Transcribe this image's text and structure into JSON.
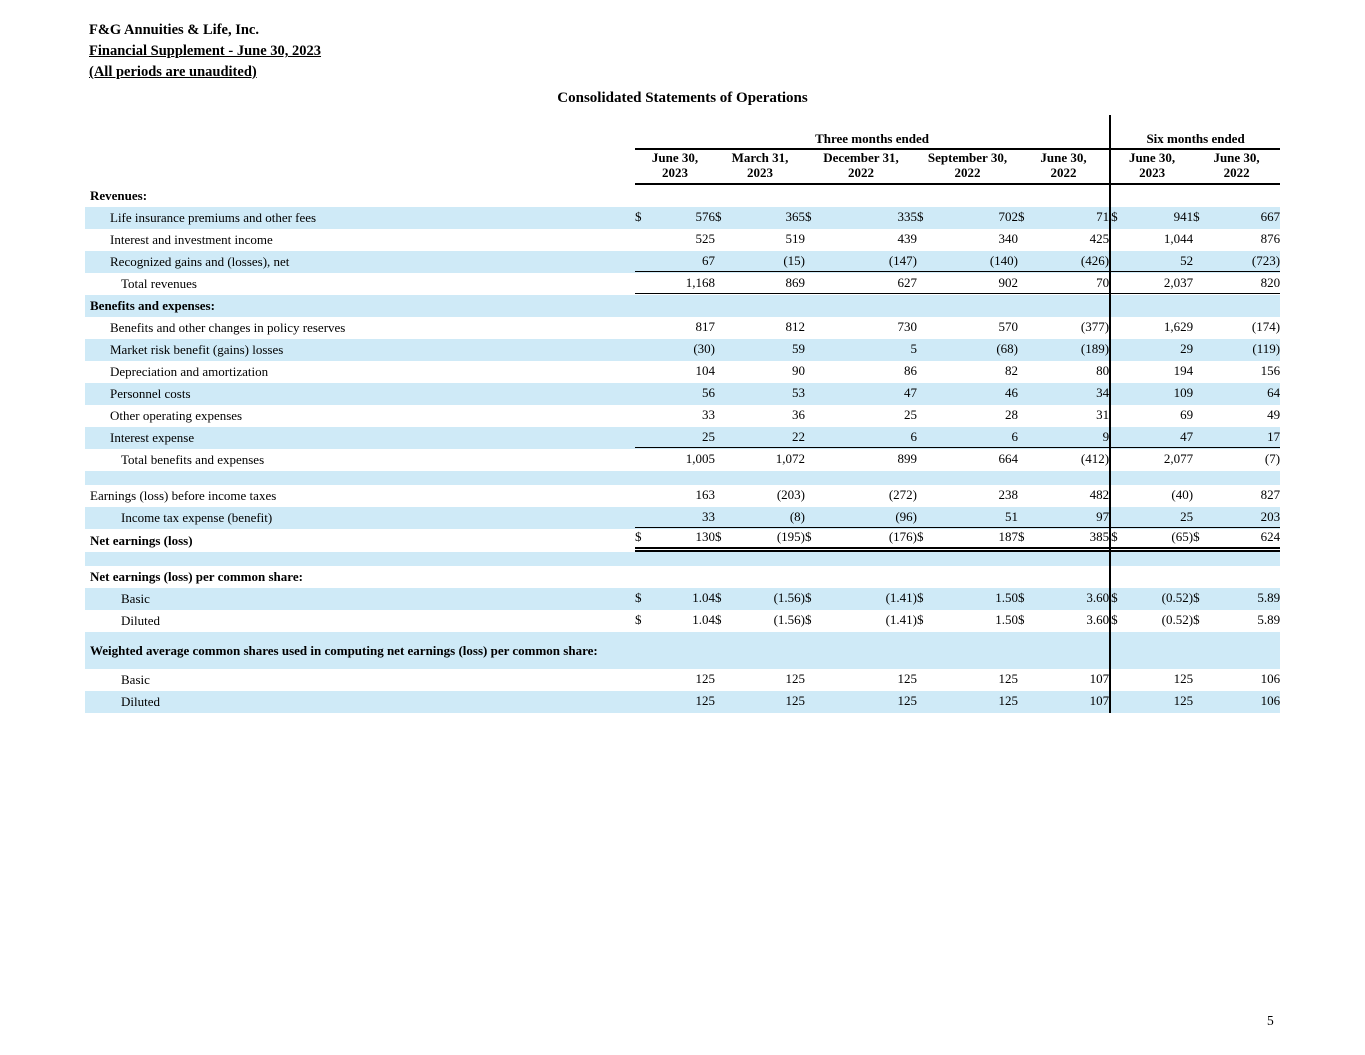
{
  "header": {
    "company": "F&G Annuities & Life, Inc.",
    "supplement": "Financial Supplement - June 30, 2023",
    "note": "(All periods are unaudited)"
  },
  "title": "Consolidated Statements of Operations",
  "page_number": "5",
  "table": {
    "currency": "$",
    "group_headers": [
      {
        "label": "Three months ended",
        "span": 5
      },
      {
        "label": "Six months ended",
        "span": 2
      }
    ],
    "columns": [
      "June 30,\n2023",
      "March 31,\n2023",
      "December 31,\n2022",
      "September 30,\n2022",
      "June 30,\n2022",
      "June 30,\n2023",
      "June 30,\n2022"
    ],
    "rows": [
      {
        "type": "section",
        "indent": 0,
        "label": "Revenues:"
      },
      {
        "type": "item",
        "indent": 1,
        "label": "Life insurance premiums and other fees",
        "dollar": true,
        "values": [
          "576",
          "365",
          "335",
          "702",
          "71",
          "941",
          "667"
        ]
      },
      {
        "type": "item",
        "indent": 1,
        "label": "Interest and investment income",
        "values": [
          "525",
          "519",
          "439",
          "340",
          "425",
          "1,044",
          "876"
        ]
      },
      {
        "type": "item",
        "indent": 1,
        "label": "Recognized gains and (losses), net",
        "underline": "single",
        "values": [
          "67",
          "(15)",
          "(147)",
          "(140)",
          "(426)",
          "52",
          "(723)"
        ]
      },
      {
        "type": "item",
        "indent": 2,
        "label": "Total revenues",
        "underline": "single",
        "values": [
          "1,168",
          "869",
          "627",
          "902",
          "70",
          "2,037",
          "820"
        ]
      },
      {
        "type": "section",
        "indent": 0,
        "label": "Benefits and expenses:"
      },
      {
        "type": "item",
        "indent": 1,
        "label": "Benefits and other changes in policy reserves",
        "values": [
          "817",
          "812",
          "730",
          "570",
          "(377)",
          "1,629",
          "(174)"
        ]
      },
      {
        "type": "item",
        "indent": 1,
        "label": "Market risk benefit (gains) losses",
        "values": [
          "(30)",
          "59",
          "5",
          "(68)",
          "(189)",
          "29",
          "(119)"
        ]
      },
      {
        "type": "item",
        "indent": 1,
        "label": "Depreciation and amortization",
        "values": [
          "104",
          "90",
          "86",
          "82",
          "80",
          "194",
          "156"
        ]
      },
      {
        "type": "item",
        "indent": 1,
        "label": "Personnel costs",
        "values": [
          "56",
          "53",
          "47",
          "46",
          "34",
          "109",
          "64"
        ]
      },
      {
        "type": "item",
        "indent": 1,
        "label": "Other operating expenses",
        "values": [
          "33",
          "36",
          "25",
          "28",
          "31",
          "69",
          "49"
        ]
      },
      {
        "type": "item",
        "indent": 1,
        "label": "Interest expense",
        "underline": "single",
        "values": [
          "25",
          "22",
          "6",
          "6",
          "9",
          "47",
          "17"
        ]
      },
      {
        "type": "item",
        "indent": 2,
        "label": "Total benefits and expenses",
        "values": [
          "1,005",
          "1,072",
          "899",
          "664",
          "(412)",
          "2,077",
          "(7)"
        ]
      },
      {
        "type": "blank"
      },
      {
        "type": "item",
        "indent": 0,
        "label": "Earnings (loss) before income taxes",
        "values": [
          "163",
          "(203)",
          "(272)",
          "238",
          "482",
          "(40)",
          "827"
        ]
      },
      {
        "type": "item",
        "indent": 2,
        "label": "Income tax expense (benefit)",
        "underline": "single",
        "values": [
          "33",
          "(8)",
          "(96)",
          "51",
          "97",
          "25",
          "203"
        ]
      },
      {
        "type": "item",
        "indent": 0,
        "bold": true,
        "label": "Net earnings (loss)",
        "dollar": true,
        "underline": "double",
        "values": [
          "130",
          "(195)",
          "(176)",
          "187",
          "385",
          "(65)",
          "624"
        ]
      },
      {
        "type": "blank"
      },
      {
        "type": "section",
        "indent": 0,
        "label": "Net earnings (loss) per common share:"
      },
      {
        "type": "item",
        "indent": 2,
        "label": "Basic",
        "dollar": true,
        "values": [
          "1.04",
          "(1.56)",
          "(1.41)",
          "1.50",
          "3.60",
          "(0.52)",
          "5.89"
        ]
      },
      {
        "type": "item",
        "indent": 2,
        "label": "Diluted",
        "dollar": true,
        "values": [
          "1.04",
          "(1.56)",
          "(1.41)",
          "1.50",
          "3.60",
          "(0.52)",
          "5.89"
        ]
      },
      {
        "type": "section",
        "indent": 0,
        "tall": true,
        "label": "Weighted average common shares used in computing net earnings (loss) per common share:"
      },
      {
        "type": "item",
        "indent": 2,
        "label": "Basic",
        "values": [
          "125",
          "125",
          "125",
          "125",
          "107",
          "125",
          "106"
        ]
      },
      {
        "type": "item",
        "indent": 2,
        "label": "Diluted",
        "values": [
          "125",
          "125",
          "125",
          "125",
          "107",
          "125",
          "106"
        ]
      }
    ]
  }
}
